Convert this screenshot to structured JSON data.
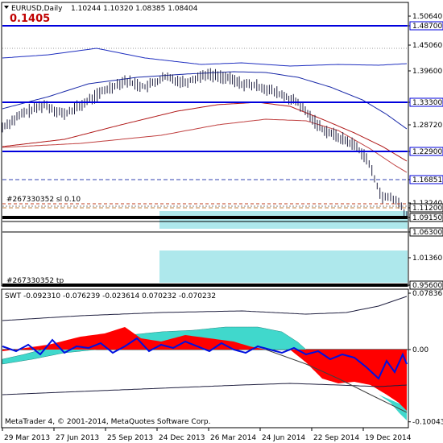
{
  "header": {
    "title": "EURUSD,Daily",
    "ohlc": "1.10244 1.10320 1.08385 1.08404",
    "big_value": "0.1405",
    "big_value_color": "#c00000"
  },
  "main_chart": {
    "price_levels": [
      {
        "value": 1.5064,
        "label": "1.50640",
        "boxed": false
      },
      {
        "value": 1.487,
        "label": "1.48700",
        "boxed": true
      },
      {
        "value": 1.4506,
        "label": "1.45060",
        "boxed": false
      },
      {
        "value": 1.396,
        "label": "1.39600",
        "boxed": false
      },
      {
        "value": 1.333,
        "label": "1.33300",
        "boxed": true
      },
      {
        "value": 1.2872,
        "label": "1.28720",
        "boxed": false
      },
      {
        "value": 1.229,
        "label": "1.22900",
        "boxed": true
      },
      {
        "value": 1.1685,
        "label": "1.16851",
        "boxed": true
      },
      {
        "value": 1.1324,
        "label": "1.13240",
        "boxed": false
      },
      {
        "value": 1.112,
        "label": "1.11200",
        "boxed": true
      },
      {
        "value": 1.0915,
        "label": "1.09150",
        "boxed": true
      },
      {
        "value": 1.063,
        "label": "1.06300",
        "boxed": true
      },
      {
        "value": 1.0136,
        "label": "1.01360",
        "boxed": false
      },
      {
        "value": 0.956,
        "label": "0.95600",
        "boxed": true
      }
    ],
    "order_labels": {
      "sl": "#267330352 sl",
      "sl_value": "0.10",
      "tp": "#267330352 tp"
    },
    "blue_line_color": "#0000dd",
    "zone_color": "#aee8ec"
  },
  "indicator": {
    "label": "SWT -0.092310 -0.076239 -0.023614 0.070232 -0.070232",
    "levels": [
      {
        "value": 0.07836,
        "label": "0.07836"
      },
      {
        "value": 0.0,
        "label": "0.00"
      },
      {
        "value": -0.10043,
        "label": "-0.100437"
      }
    ],
    "red_color": "#ff0000",
    "cyan_color": "#40d8cc"
  },
  "footer": {
    "copyright": "MetaTrader 4, © 2001-2014, MetaQuotes Software Corp."
  },
  "time_axis": {
    "labels": [
      "29 Mar 2013",
      "27 Jun 2013",
      "25 Sep 2013",
      "24 Dec 2013",
      "26 Mar 2014",
      "24 Jun 2014",
      "22 Sep 2014",
      "19 Dec 2014"
    ]
  }
}
